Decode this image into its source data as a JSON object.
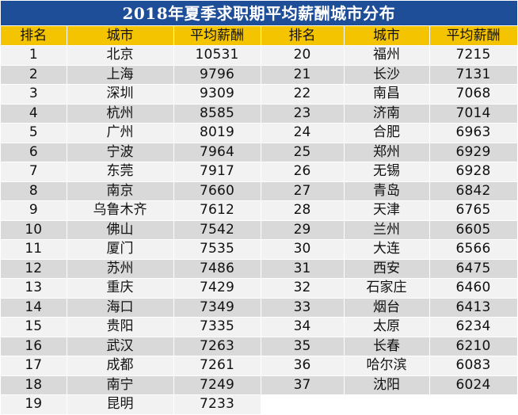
{
  "table": {
    "title": "2018年夏季求职期平均薪酬城市分布",
    "headers": [
      "排名",
      "城市",
      "平均薪酬",
      "排名",
      "城市",
      "平均薪酬"
    ],
    "rows": [
      {
        "left": {
          "rank": "1",
          "city": "北京",
          "salary": "10531"
        },
        "right": {
          "rank": "20",
          "city": "福州",
          "salary": "7215"
        }
      },
      {
        "left": {
          "rank": "2",
          "city": "上海",
          "salary": "9796"
        },
        "right": {
          "rank": "21",
          "city": "长沙",
          "salary": "7131"
        }
      },
      {
        "left": {
          "rank": "3",
          "city": "深圳",
          "salary": "9309"
        },
        "right": {
          "rank": "22",
          "city": "南昌",
          "salary": "7068"
        }
      },
      {
        "left": {
          "rank": "4",
          "city": "杭州",
          "salary": "8585"
        },
        "right": {
          "rank": "23",
          "city": "济南",
          "salary": "7014"
        }
      },
      {
        "left": {
          "rank": "5",
          "city": "广州",
          "salary": "8019"
        },
        "right": {
          "rank": "24",
          "city": "合肥",
          "salary": "6963"
        }
      },
      {
        "left": {
          "rank": "6",
          "city": "宁波",
          "salary": "7964"
        },
        "right": {
          "rank": "25",
          "city": "郑州",
          "salary": "6929"
        }
      },
      {
        "left": {
          "rank": "7",
          "city": "东莞",
          "salary": "7917"
        },
        "right": {
          "rank": "26",
          "city": "无锡",
          "salary": "6928"
        }
      },
      {
        "left": {
          "rank": "8",
          "city": "南京",
          "salary": "7660"
        },
        "right": {
          "rank": "27",
          "city": "青岛",
          "salary": "6842"
        }
      },
      {
        "left": {
          "rank": "9",
          "city": "乌鲁木齐",
          "salary": "7612"
        },
        "right": {
          "rank": "28",
          "city": "天津",
          "salary": "6765"
        }
      },
      {
        "left": {
          "rank": "10",
          "city": "佛山",
          "salary": "7542"
        },
        "right": {
          "rank": "29",
          "city": "兰州",
          "salary": "6605"
        }
      },
      {
        "left": {
          "rank": "11",
          "city": "厦门",
          "salary": "7535"
        },
        "right": {
          "rank": "30",
          "city": "大连",
          "salary": "6566"
        }
      },
      {
        "left": {
          "rank": "12",
          "city": "苏州",
          "salary": "7486"
        },
        "right": {
          "rank": "31",
          "city": "西安",
          "salary": "6475"
        }
      },
      {
        "left": {
          "rank": "13",
          "city": "重庆",
          "salary": "7429"
        },
        "right": {
          "rank": "32",
          "city": "石家庄",
          "salary": "6460"
        }
      },
      {
        "left": {
          "rank": "14",
          "city": "海口",
          "salary": "7349"
        },
        "right": {
          "rank": "33",
          "city": "烟台",
          "salary": "6413"
        }
      },
      {
        "left": {
          "rank": "15",
          "city": "贵阳",
          "salary": "7335"
        },
        "right": {
          "rank": "34",
          "city": "太原",
          "salary": "6234"
        }
      },
      {
        "left": {
          "rank": "16",
          "city": "武汉",
          "salary": "7263"
        },
        "right": {
          "rank": "35",
          "city": "长春",
          "salary": "6210"
        }
      },
      {
        "left": {
          "rank": "17",
          "city": "成都",
          "salary": "7261"
        },
        "right": {
          "rank": "36",
          "city": "哈尔滨",
          "salary": "6083"
        }
      },
      {
        "left": {
          "rank": "18",
          "city": "南宁",
          "salary": "7249"
        },
        "right": {
          "rank": "37",
          "city": "沈阳",
          "salary": "6024"
        }
      },
      {
        "left": {
          "rank": "19",
          "city": "昆明",
          "salary": "7233"
        },
        "right": null
      }
    ]
  },
  "colors": {
    "title_bg": "#1f4e99",
    "header_bg": "#f5c400",
    "row_odd": "#f2f2f2",
    "row_even": "#d9d9d9"
  }
}
